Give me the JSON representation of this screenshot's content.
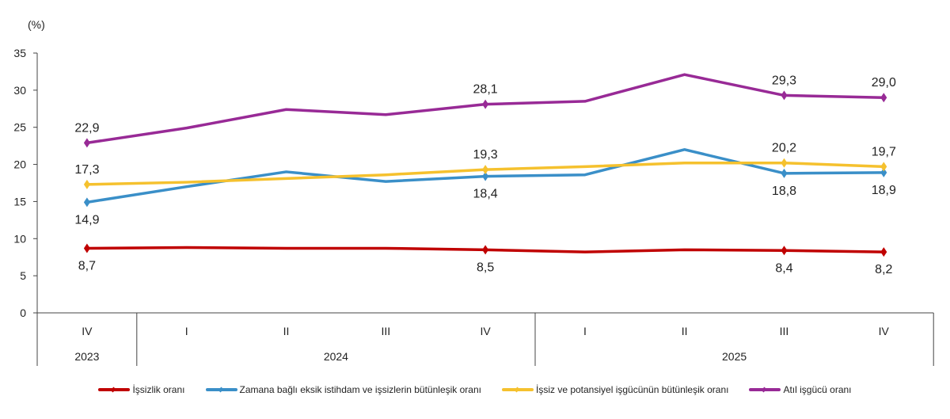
{
  "chart_data": {
    "type": "line",
    "unit_label": "(%)",
    "ylim": [
      0,
      35
    ],
    "yticks": [
      0,
      5,
      10,
      15,
      20,
      25,
      30,
      35
    ],
    "categories": [
      "IV",
      "I",
      "II",
      "III",
      "IV",
      "I",
      "II",
      "III",
      "IV"
    ],
    "years": [
      {
        "label": "2023",
        "span": 1
      },
      {
        "label": "2024",
        "span": 4
      },
      {
        "label": "2025",
        "span": 4
      }
    ],
    "series": [
      {
        "name": "İşsizlik oranı",
        "color": "#c00000",
        "values": [
          8.7,
          8.8,
          8.7,
          8.7,
          8.5,
          8.2,
          8.5,
          8.4,
          8.2
        ],
        "labels": [
          "8,7",
          null,
          null,
          null,
          "8,5",
          null,
          null,
          "8,4",
          "8,2"
        ]
      },
      {
        "name": "Zamana bağlı eksik istihdam ve işsizlerin bütünleşik oranı",
        "color": "#3a8fc8",
        "values": [
          14.9,
          17.0,
          19.0,
          17.7,
          18.4,
          18.6,
          22.0,
          18.8,
          18.9
        ],
        "labels": [
          "14,9",
          null,
          null,
          null,
          "18,4",
          null,
          null,
          "18,8",
          "18,9"
        ]
      },
      {
        "name": "İşsiz ve potansiyel işgücünün bütünleşik oranı",
        "color": "#f5c12e",
        "values": [
          17.3,
          17.6,
          18.1,
          18.6,
          19.3,
          19.7,
          20.2,
          20.2,
          19.7
        ],
        "labels": [
          "17,3",
          null,
          null,
          null,
          "19,3",
          null,
          null,
          "20,2",
          "19,7"
        ]
      },
      {
        "name": "Atıl işgücü oranı",
        "color": "#982a96",
        "values": [
          22.9,
          24.9,
          27.4,
          26.7,
          28.1,
          28.5,
          32.1,
          29.3,
          29.0
        ],
        "labels": [
          "22,9",
          null,
          null,
          null,
          "28,1",
          null,
          null,
          "29,3",
          "29,0"
        ]
      }
    ],
    "legend_position": "bottom",
    "grid": false
  }
}
